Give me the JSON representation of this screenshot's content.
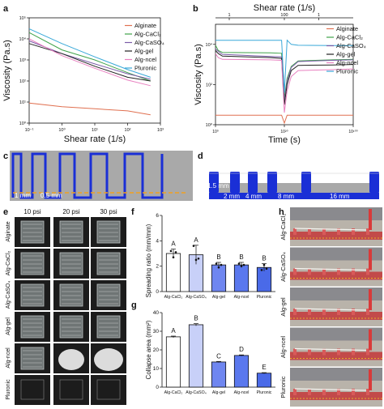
{
  "panels": {
    "a": "a",
    "b": "b",
    "c": "c",
    "d": "d",
    "e": "e",
    "f": "f",
    "g": "g",
    "h": "h"
  },
  "colors": {
    "alginate": "#e07050",
    "cacl2": "#3fa24a",
    "caso4": "#7b5ca8",
    "gel": "#222222",
    "ncel": "#e880c0",
    "pluronic": "#38a8d8",
    "blue": "#1a2fd6",
    "grey": "#a9a9a9",
    "orange": "#f0a020"
  },
  "chart_data": [
    {
      "type": "line",
      "panel": "a",
      "xlabel": "Shear rate (1/s)",
      "ylabel": "Viscosity (Pa.s)",
      "xscale": "log",
      "yscale": "log",
      "xlim": [
        0.1,
        1000
      ],
      "ylim": [
        1,
        100000
      ],
      "x_ticks": [
        "10⁻¹",
        "10⁰",
        "10¹",
        "10²",
        "10³"
      ],
      "y_ticks": [
        "10⁰",
        "10¹",
        "10²",
        "10³",
        "10⁴",
        "10⁵"
      ],
      "x": [
        0.1,
        1,
        10,
        100,
        500
      ],
      "series": [
        {
          "name": "Alginate",
          "color": "#e07050",
          "values": [
            9,
            6,
            4.8,
            3.8,
            2.5
          ]
        },
        {
          "name": "Alg-CaCl₂",
          "color": "#3fa24a",
          "values": [
            20000,
            3000,
            1000,
            250,
            100
          ]
        },
        {
          "name": "Alg-CaSO₄",
          "color": "#7b5ca8",
          "values": [
            8000,
            2000,
            650,
            220,
            120
          ]
        },
        {
          "name": "Alg-gel",
          "color": "#222222",
          "values": [
            6000,
            2000,
            500,
            150,
            100
          ]
        },
        {
          "name": "Alg-ncel",
          "color": "#e880c0",
          "values": [
            10000,
            1600,
            400,
            110,
            60
          ]
        },
        {
          "name": "Pluronic",
          "color": "#38a8d8",
          "values": [
            30000,
            6000,
            1400,
            350,
            150
          ]
        }
      ],
      "legend": "top-right"
    },
    {
      "type": "line",
      "panel": "b",
      "title": "Shear rate (1/s)",
      "xlabel": "Time (s)",
      "ylabel": "Viscosity (Pa.s)",
      "top_ticks": [
        "1",
        "100",
        "1"
      ],
      "x_ticks": [
        "10⁰",
        "10²⁰",
        "10¹⁰⁰"
      ],
      "y_ticks": [
        "10⁰",
        "10²",
        "10⁴"
      ],
      "x": [
        0,
        2,
        5,
        40,
        48,
        50,
        52,
        55,
        60,
        85,
        100
      ],
      "series": [
        {
          "name": "Alginate",
          "color": "#e07050",
          "values": [
            3,
            3,
            3,
            3,
            3,
            1.2,
            3,
            3,
            3,
            3,
            3
          ]
        },
        {
          "name": "Alg-CaCl₂",
          "color": "#3fa24a",
          "values": [
            9000,
            5000,
            4000,
            3800,
            3600,
            20,
            200,
            800,
            1500,
            1700,
            1800
          ]
        },
        {
          "name": "Alg-CaSO₄",
          "color": "#7b5ca8",
          "values": [
            6000,
            4500,
            3200,
            2500,
            2400,
            15,
            150,
            700,
            1400,
            1600,
            1700
          ]
        },
        {
          "name": "Alg-gel",
          "color": "#222222",
          "values": [
            5000,
            3500,
            2600,
            2200,
            2000,
            10,
            100,
            500,
            900,
            950,
            1000
          ]
        },
        {
          "name": "Alg-ncel",
          "color": "#e880c0",
          "values": [
            3500,
            2200,
            1800,
            1700,
            1600,
            4,
            50,
            250,
            500,
            550,
            600
          ]
        },
        {
          "name": "Pluronic",
          "color": "#38a8d8",
          "values": [
            16000,
            16000,
            16000,
            16000,
            16000,
            40,
            16000,
            10000,
            9000,
            8800,
            8800
          ]
        }
      ],
      "legend": "top-right"
    },
    {
      "type": "bar",
      "panel": "f",
      "ylabel": "Spreading ratio (mm/mm)",
      "ylim": [
        0,
        6
      ],
      "y_ticks": [
        "0",
        "2",
        "4",
        "6"
      ],
      "categories": [
        "Alg-CaCl₂",
        "Alg-CaSO₄",
        "Alg-gel",
        "Alg-ncel",
        "Pluronic"
      ],
      "values": [
        3.0,
        2.9,
        2.1,
        2.1,
        1.9
      ],
      "errors": [
        0.35,
        0.75,
        0.2,
        0.2,
        0.3
      ],
      "letters": [
        "A",
        "A",
        "B",
        "B",
        "B"
      ],
      "points": [
        [
          3.2,
          2.7,
          3.1
        ],
        [
          3.6,
          2.5,
          2.6
        ],
        [
          2.2,
          1.9,
          2.1
        ],
        [
          2.2,
          2.0,
          2.1
        ],
        [
          1.7,
          2.1,
          1.8
        ]
      ]
    },
    {
      "type": "bar",
      "panel": "g",
      "ylabel": "Collapse area (mm²)",
      "ylim": [
        0,
        40
      ],
      "y_ticks": [
        "0",
        "10",
        "20",
        "30",
        "40"
      ],
      "categories": [
        "Alg-CaCl₂",
        "Alg-CaSO₄",
        "Alg-gel",
        "Alg-ncel",
        "Pluronic"
      ],
      "values": [
        27,
        33.5,
        13.5,
        17,
        7.5
      ],
      "errors": [
        0.4,
        0.6,
        0.3,
        0.3,
        0.3
      ],
      "letters": [
        "A",
        "B",
        "C",
        "D",
        "E"
      ]
    }
  ],
  "panel_c": {
    "labels": [
      "1 mm",
      "0.5 mm"
    ]
  },
  "panel_d": {
    "labels": [
      "1.5 mm",
      "2 mm",
      "4 mm",
      "8 mm",
      "16 mm"
    ]
  },
  "panel_e": {
    "columns": [
      "10 psi",
      "20 psi",
      "30 psi"
    ],
    "rows": [
      "Alginate",
      "Alg-CaCl₂",
      "Alg-CaSO₄",
      "Alg-gel",
      "Alg-ncel",
      "Pluronic"
    ]
  },
  "panel_h": {
    "rows": [
      "Alg-CaCl₂",
      "Alg-CaSO₄",
      "Alg-gel",
      "Alg-ncel",
      "Pluronic"
    ]
  }
}
